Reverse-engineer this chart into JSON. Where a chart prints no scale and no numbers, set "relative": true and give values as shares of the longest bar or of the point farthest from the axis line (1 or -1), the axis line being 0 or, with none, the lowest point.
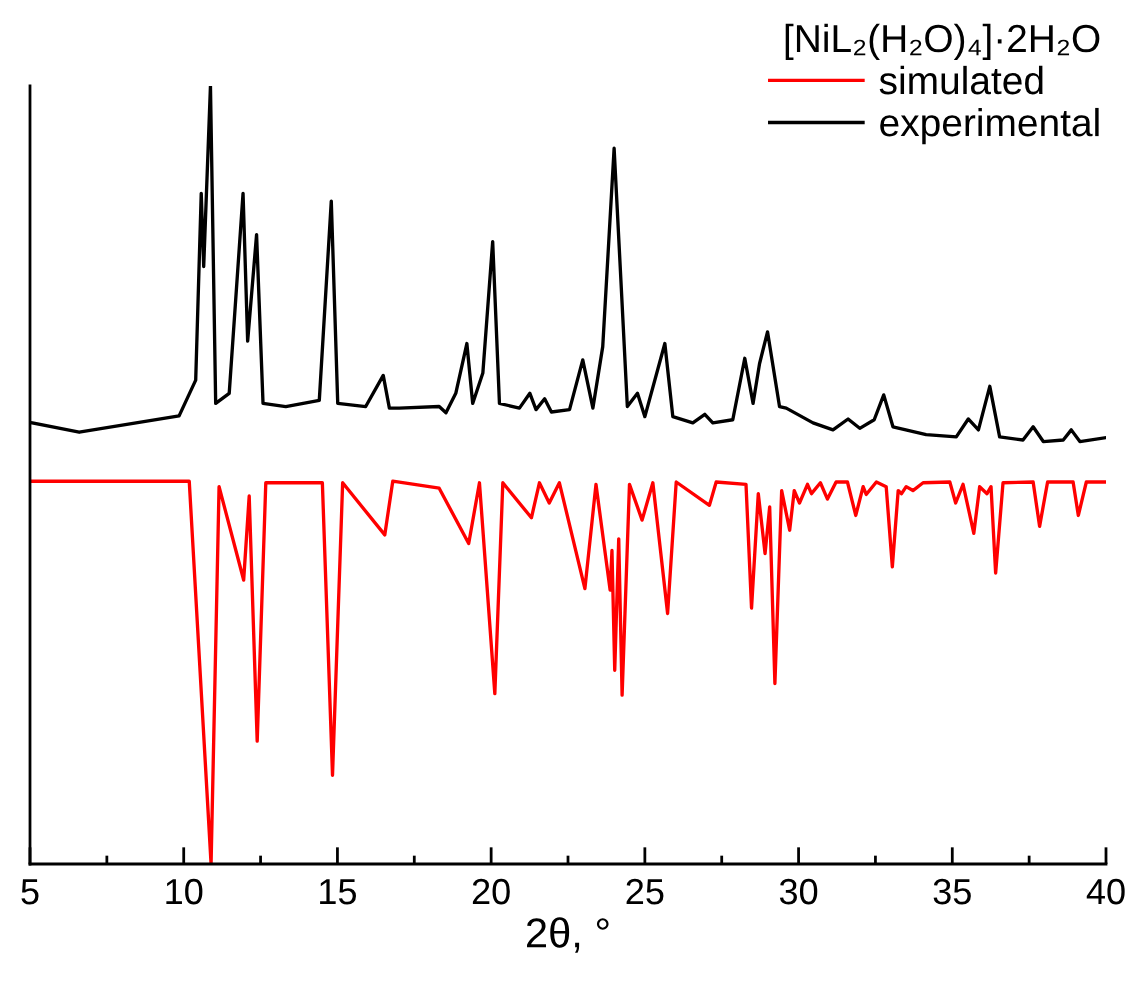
{
  "chart_data": {
    "type": "line",
    "relative": true,
    "xlabel": "2θ, °",
    "legend_title": "[NiL₂(H₂O)₄]·2H₂O",
    "legend": "top right",
    "grid": false,
    "marker": "none",
    "line_style": "solid",
    "xlim": [
      5,
      40
    ],
    "xticks": [
      5,
      {
        "value": 7.5,
        "label": null
      },
      10,
      {
        "value": 12.5,
        "label": null
      },
      15,
      {
        "value": 17.5,
        "label": null
      },
      20,
      {
        "value": 22.5,
        "label": null
      },
      25,
      {
        "value": 27.5,
        "label": null
      },
      30,
      {
        "value": 32.5,
        "label": null
      },
      35,
      {
        "value": 37.5,
        "label": null
      },
      40
    ],
    "series": [
      {
        "name": "simulated",
        "color": "#ff0000",
        "x": [
          5.0,
          10.18,
          10.89,
          11.15,
          11.95,
          12.13,
          12.39,
          12.67,
          14.51,
          14.84,
          15.17,
          16.54,
          16.8,
          18.31,
          19.27,
          19.62,
          20.12,
          20.38,
          21.31,
          21.57,
          21.89,
          22.22,
          23.05,
          23.41,
          23.87,
          23.93,
          24.02,
          24.15,
          24.26,
          24.5,
          24.91,
          25.26,
          25.74,
          26.02,
          27.1,
          27.32,
          28.29,
          28.47,
          28.69,
          28.91,
          29.06,
          29.23,
          29.45,
          29.71,
          29.86,
          30.03,
          30.29,
          30.42,
          30.71,
          30.94,
          31.22,
          31.59,
          31.86,
          32.1,
          32.2,
          32.53,
          32.85,
          33.05,
          33.24,
          33.35,
          33.5,
          33.72,
          34.05,
          34.92,
          35.11,
          35.35,
          35.7,
          35.89,
          36.13,
          36.26,
          36.41,
          36.65,
          37.63,
          37.84,
          38.1,
          38.93,
          39.1,
          39.36,
          39.99
        ],
        "values": [
          0.492,
          0.492,
          0,
          0.485,
          0.365,
          0.473,
          0.158,
          0.49,
          0.49,
          0.114,
          0.49,
          0.423,
          0.492,
          0.483,
          0.412,
          0.49,
          0.219,
          0.49,
          0.445,
          0.49,
          0.464,
          0.49,
          0.354,
          0.488,
          0.352,
          0.403,
          0.249,
          0.418,
          0.217,
          0.488,
          0.442,
          0.49,
          0.322,
          0.491,
          0.461,
          0.491,
          0.488,
          0.329,
          0.476,
          0.399,
          0.459,
          0.232,
          0.48,
          0.429,
          0.48,
          0.464,
          0.488,
          0.476,
          0.49,
          0.469,
          0.491,
          0.491,
          0.448,
          0.485,
          0.475,
          0.491,
          0.485,
          0.382,
          0.48,
          0.476,
          0.485,
          0.48,
          0.49,
          0.491,
          0.464,
          0.488,
          0.425,
          0.485,
          0.476,
          0.485,
          0.374,
          0.49,
          0.491,
          0.434,
          0.491,
          0.491,
          0.448,
          0.491,
          0.491
        ]
      },
      {
        "name": "experimental",
        "color": "#000000",
        "x": [
          5.08,
          6.6,
          9.85,
          10.39,
          10.57,
          10.65,
          10.87,
          11.04,
          11.48,
          11.93,
          12.08,
          12.37,
          12.58,
          13.32,
          14.41,
          14.8,
          15.01,
          15.92,
          16.49,
          16.69,
          17.01,
          18.31,
          18.53,
          18.85,
          19.21,
          19.4,
          19.73,
          20.05,
          20.27,
          20.92,
          21.26,
          21.46,
          21.74,
          21.96,
          22.55,
          22.98,
          23.31,
          23.63,
          24.0,
          24.22,
          24.43,
          24.76,
          25.0,
          25.65,
          25.91,
          26.56,
          26.95,
          27.21,
          27.86,
          28.25,
          28.52,
          28.73,
          28.99,
          29.38,
          29.6,
          30.47,
          31.12,
          31.61,
          31.99,
          32.46,
          32.77,
          33.07,
          34.15,
          35.13,
          35.52,
          35.85,
          36.22,
          36.54,
          37.3,
          37.63,
          37.96,
          38.61,
          38.87,
          39.15,
          39.99
        ],
        "values": [
          0.567,
          0.555,
          0.576,
          0.622,
          0.862,
          0.768,
          1.0,
          0.592,
          0.605,
          0.862,
          0.672,
          0.809,
          0.592,
          0.588,
          0.596,
          0.852,
          0.592,
          0.588,
          0.628,
          0.586,
          0.586,
          0.588,
          0.58,
          0.605,
          0.669,
          0.592,
          0.631,
          0.8,
          0.592,
          0.586,
          0.605,
          0.584,
          0.598,
          0.581,
          0.584,
          0.648,
          0.586,
          0.665,
          0.92,
          0.751,
          0.588,
          0.605,
          0.575,
          0.669,
          0.575,
          0.567,
          0.578,
          0.567,
          0.571,
          0.65,
          0.592,
          0.643,
          0.684,
          0.588,
          0.586,
          0.567,
          0.558,
          0.572,
          0.56,
          0.571,
          0.603,
          0.562,
          0.552,
          0.549,
          0.572,
          0.558,
          0.614,
          0.549,
          0.545,
          0.562,
          0.543,
          0.545,
          0.558,
          0.543,
          0.548
        ]
      }
    ]
  }
}
